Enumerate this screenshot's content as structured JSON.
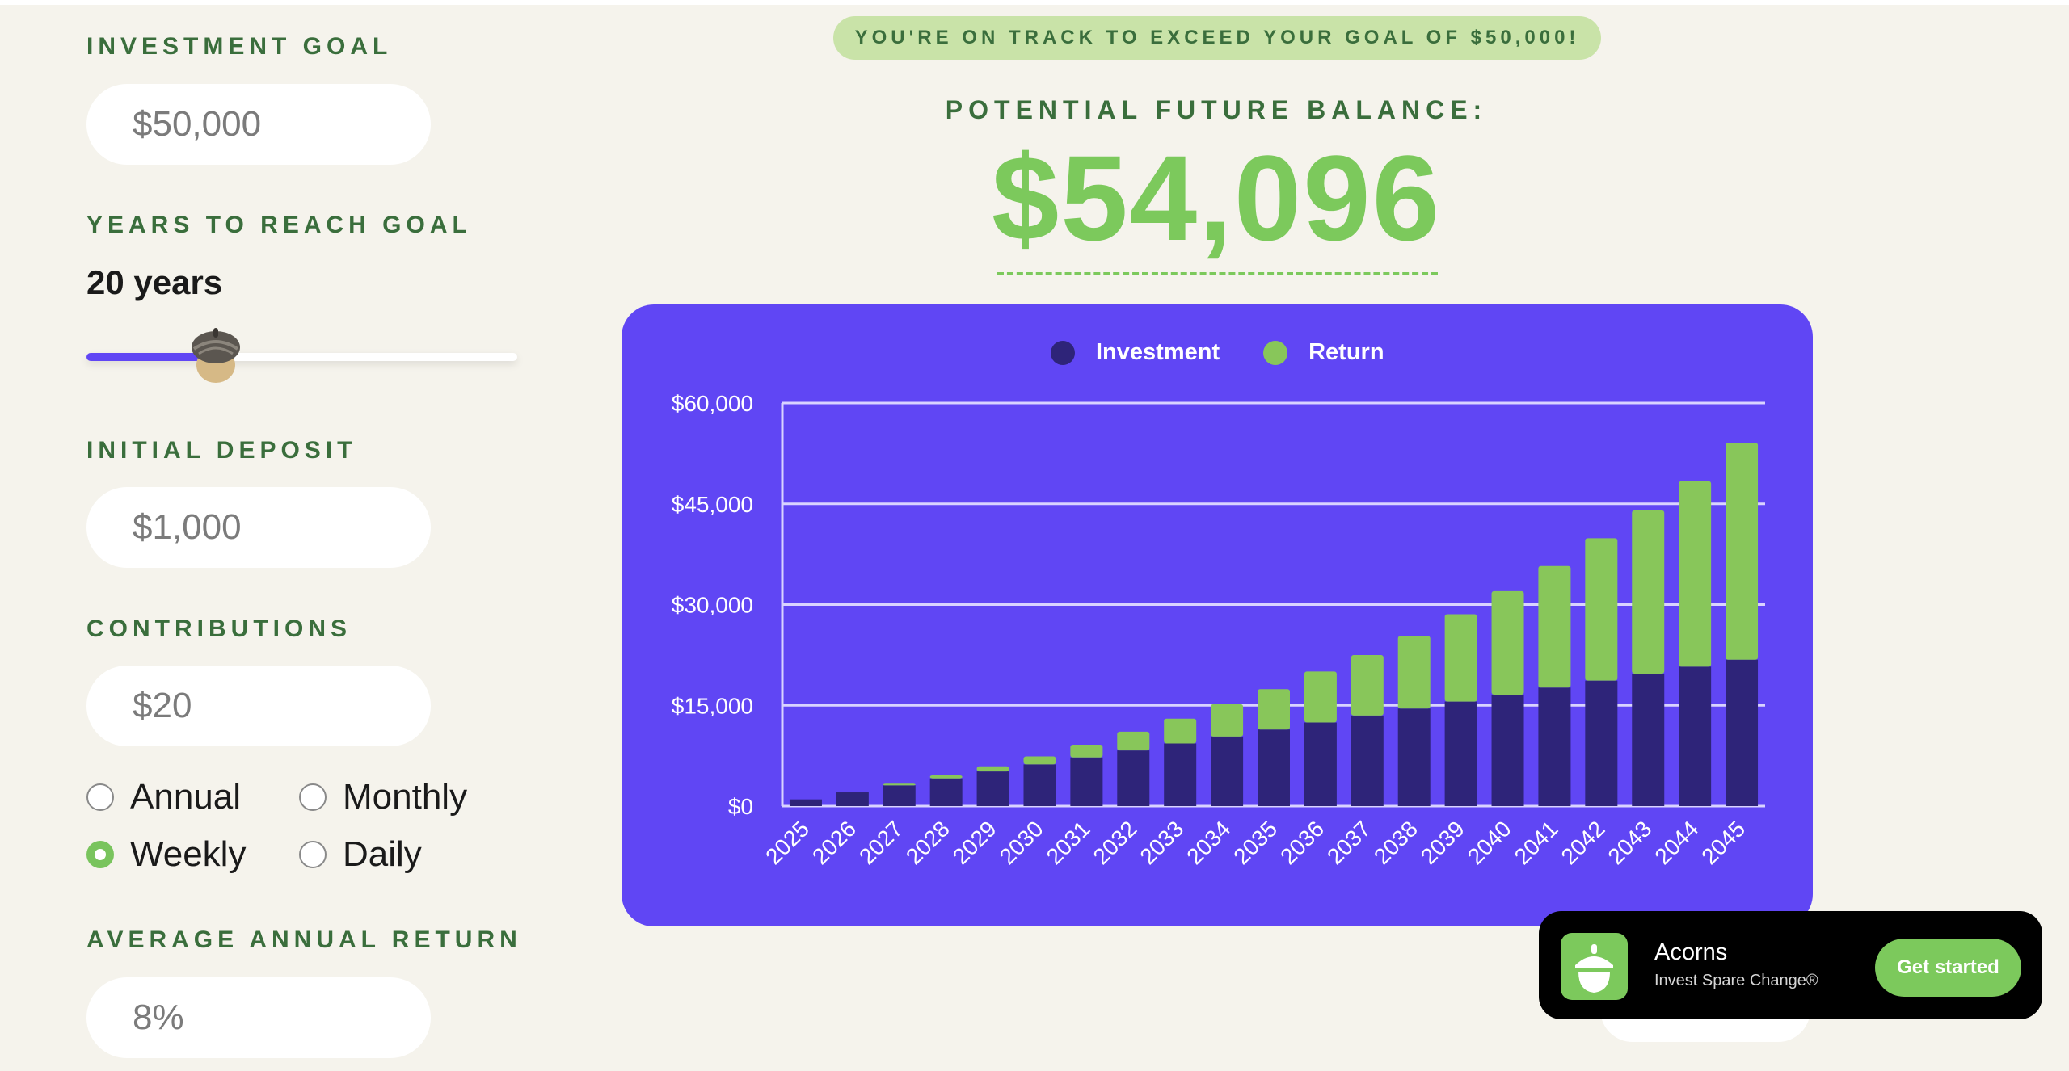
{
  "banner": {
    "text": "YOU'RE ON TRACK TO EXCEED YOUR GOAL OF $50,000!"
  },
  "form": {
    "goal": {
      "label": "INVESTMENT GOAL",
      "value": "$50,000"
    },
    "years": {
      "label": "YEARS TO REACH GOAL",
      "value": "20 years",
      "slider_fraction": 0.3
    },
    "deposit": {
      "label": "INITIAL DEPOSIT",
      "value": "$1,000"
    },
    "contributions": {
      "label": "CONTRIBUTIONS",
      "value": "$20",
      "frequency_options": [
        {
          "label": "Annual",
          "selected": false
        },
        {
          "label": "Monthly",
          "selected": false
        },
        {
          "label": "Weekly",
          "selected": true
        },
        {
          "label": "Daily",
          "selected": false
        }
      ]
    },
    "return": {
      "label": "AVERAGE ANNUAL RETURN",
      "value": "8%"
    }
  },
  "balance": {
    "label": "POTENTIAL FUTURE BALANCE:",
    "value": "$54,096"
  },
  "colors": {
    "background": "#f5f3ec",
    "label_green": "#3a6e3c",
    "accent_green": "#7cc95c",
    "chart_purple": "#6046f4",
    "investment_navy": "#2e2479",
    "return_green": "#88c65a"
  },
  "chart_data": {
    "type": "bar",
    "stacked": true,
    "categories": [
      "2025",
      "2026",
      "2027",
      "2028",
      "2029",
      "2030",
      "2031",
      "2032",
      "2033",
      "2034",
      "2035",
      "2036",
      "2037",
      "2038",
      "2039",
      "2040",
      "2041",
      "2042",
      "2043",
      "2044",
      "2045"
    ],
    "series": [
      {
        "name": "Investment",
        "values": [
          1000,
          2040,
          3080,
          4120,
          5160,
          6200,
          7240,
          8280,
          9320,
          10360,
          11400,
          12440,
          13480,
          14520,
          15560,
          16600,
          17640,
          18680,
          19720,
          20760,
          21800
        ]
      },
      {
        "name": "Return",
        "values": [
          0,
          80,
          250,
          450,
          760,
          1200,
          1900,
          2800,
          3700,
          4800,
          6000,
          7600,
          9000,
          10800,
          13000,
          15400,
          18100,
          21200,
          24300,
          27600,
          32300
        ]
      }
    ],
    "ylim": [
      0,
      60000
    ],
    "yticks": [
      {
        "value": 0,
        "label": "$0"
      },
      {
        "value": 15000,
        "label": "$15,000"
      },
      {
        "value": 30000,
        "label": "$30,000"
      },
      {
        "value": 45000,
        "label": "$45,000"
      },
      {
        "value": 60000,
        "label": "$60,000"
      }
    ],
    "grid": true,
    "legend_position": "top-center"
  },
  "toast": {
    "app_name": "Acorns",
    "subtitle": "Invest Spare Change®",
    "cta": "Get started",
    "icon": "acorn-icon"
  }
}
